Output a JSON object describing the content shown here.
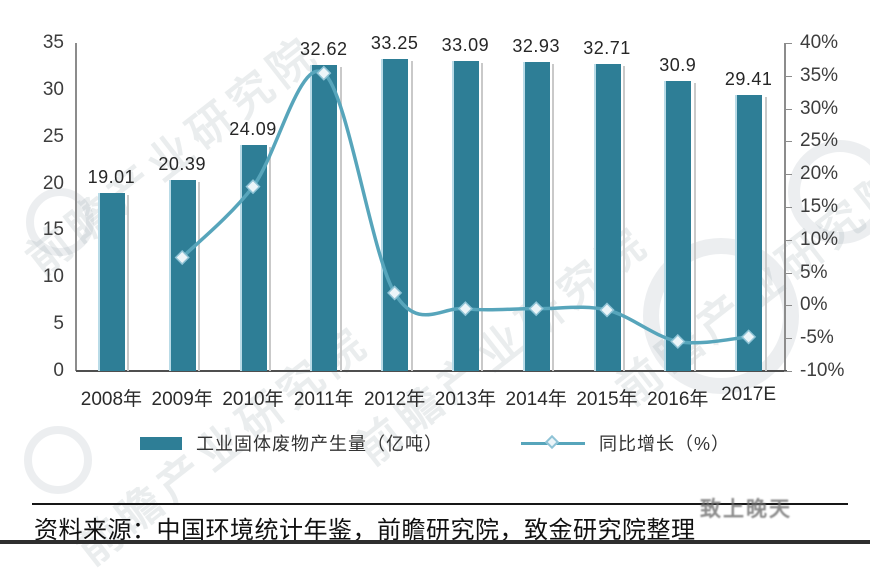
{
  "chart_data": {
    "type": "bar+line",
    "title": "",
    "xlabel": "",
    "ylabel": "",
    "grid": false,
    "legend_position": "bottom",
    "categories": [
      "2008年",
      "2009年",
      "2010年",
      "2011年",
      "2012年",
      "2013年",
      "2014年",
      "2015年",
      "2016年",
      "2017E"
    ],
    "series": [
      {
        "name": "工业固体废物产生量（亿吨）",
        "chart_type": "bar",
        "axis": "left",
        "color": "#2e7e96",
        "values": [
          19.01,
          20.39,
          24.09,
          32.62,
          33.25,
          33.09,
          32.93,
          32.71,
          30.9,
          29.41
        ],
        "data_labels": [
          "19.01",
          "20.39",
          "24.09",
          "32.62",
          "33.25",
          "33.09",
          "32.93",
          "32.71",
          "30.9",
          "29.41"
        ]
      },
      {
        "name": "同比增长（%）",
        "chart_type": "line",
        "axis": "right",
        "color": "#57a5bb",
        "marker": "diamond",
        "values": [
          null,
          7.3,
          18.1,
          35.4,
          1.9,
          -0.5,
          -0.5,
          -0.7,
          -5.5,
          -4.8
        ]
      }
    ],
    "left_axis": {
      "min": 0,
      "max": 35,
      "tick_step": 5,
      "tick_labels": [
        "35",
        "30",
        "25",
        "20",
        "15",
        "10",
        "5",
        "0"
      ]
    },
    "right_axis": {
      "min": -10,
      "max": 40,
      "tick_step": 5,
      "tick_labels": [
        "40%",
        "35%",
        "30%",
        "25%",
        "20%",
        "15%",
        "10%",
        "5%",
        "0%",
        "-5%",
        "-10%"
      ]
    }
  },
  "colors": {
    "bar": "#2e7e96",
    "bar_edge_highlight": "#b9dbe7",
    "line": "#57a5bb",
    "marker_fill": "#ecf5f9",
    "marker_stroke": "#90c4d6",
    "axis_gray": "#8c8c8c"
  },
  "source": {
    "text": "资料来源：中国环境统计年鉴，前瞻研究院，致金研究院整理"
  },
  "watermark": {
    "text": "前瞻产业研究院",
    "corner_text": "致上晚天"
  }
}
